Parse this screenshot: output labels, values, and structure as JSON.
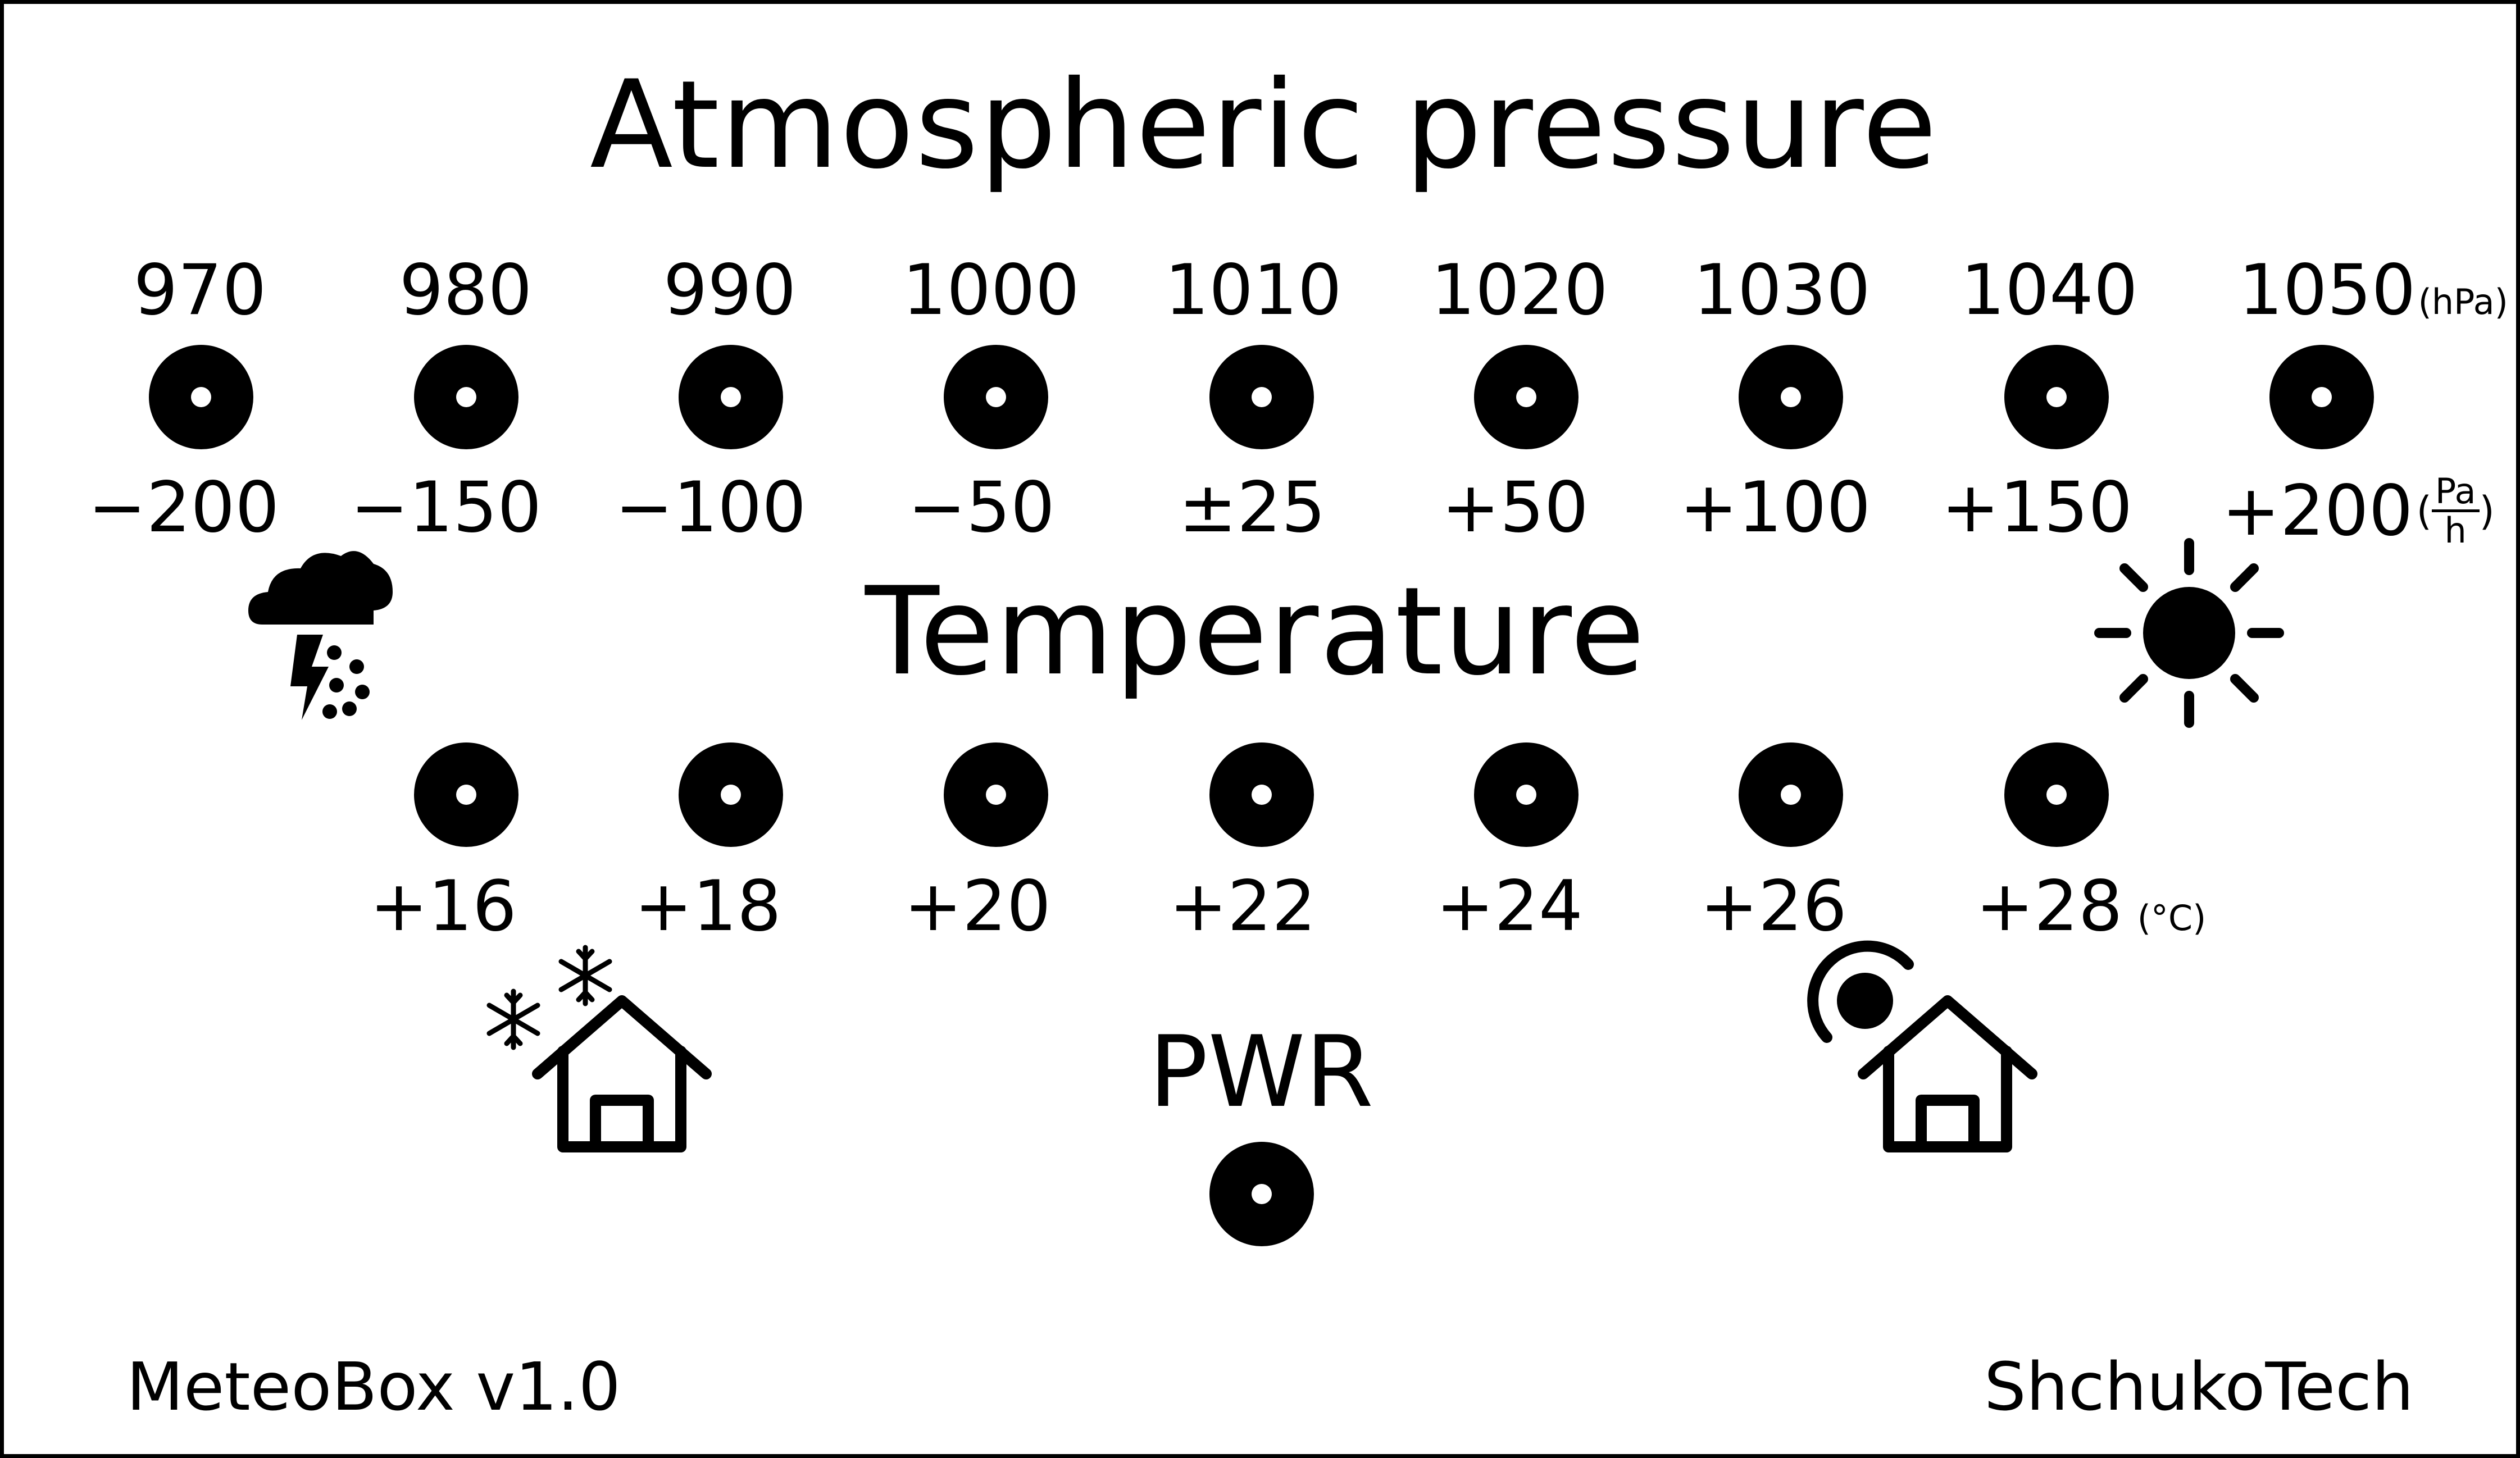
{
  "panel": {
    "pressure_title": "Atmospheric pressure",
    "temperature_title": "Temperature",
    "pressure_labels": [
      "970",
      "980",
      "990",
      "1000",
      "1010",
      "1020",
      "1030",
      "1040",
      "1050"
    ],
    "pressure_unit": "(hPa)",
    "trend_labels": [
      "−200",
      "−150",
      "−100",
      "−50",
      "±25",
      "+50",
      "+100",
      "+150",
      "+200"
    ],
    "trend_unit_open": "(",
    "trend_unit_num": "Pa",
    "trend_unit_den": "h",
    "trend_unit_close": ")",
    "temperature_labels": [
      "+16",
      "+18",
      "+20",
      "+22",
      "+24",
      "+26",
      "+28"
    ],
    "temperature_unit": "(°C)",
    "pwr_label": "PWR",
    "model": "MeteoBox v1.0",
    "brand": "ShchukoTech"
  },
  "icons": {
    "storm": "storm-cloud-icon",
    "sun": "sun-icon",
    "cold_house": "cold-house-icon",
    "warm_house": "warm-house-icon"
  },
  "colors": {
    "ink": "#000000",
    "background": "#ffffff"
  }
}
